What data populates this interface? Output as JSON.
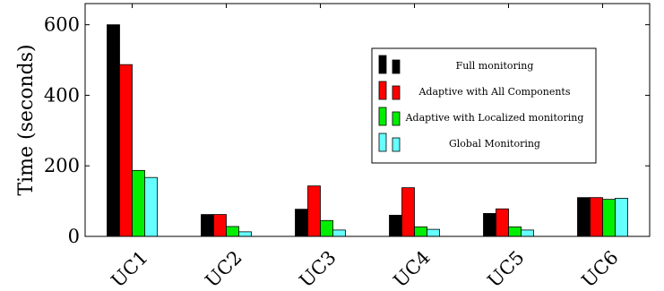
{
  "chart_data": {
    "type": "bar",
    "ylabel": "Time (seconds)",
    "xlabel": "",
    "categories": [
      "UC1",
      "UC2",
      "UC3",
      "UC4",
      "UC5",
      "UC6"
    ],
    "ylim": [
      0,
      660
    ],
    "yticks": [
      0,
      200,
      400,
      600
    ],
    "grid": false,
    "legend_position": "top-right",
    "series": [
      {
        "name": "Full monitoring",
        "color": "#000000",
        "values": [
          600,
          62,
          77,
          60,
          65,
          110
        ]
      },
      {
        "name": "Adaptive with All Components",
        "color": "#ff0000",
        "values": [
          487,
          62,
          143,
          138,
          78,
          110
        ]
      },
      {
        "name": "Adaptive with Localized monitoring",
        "color": "#00ee00",
        "values": [
          187,
          28,
          45,
          27,
          27,
          105
        ]
      },
      {
        "name": "Global Monitoring",
        "color": "#66ffff",
        "values": [
          167,
          13,
          18,
          20,
          18,
          108
        ]
      }
    ]
  }
}
